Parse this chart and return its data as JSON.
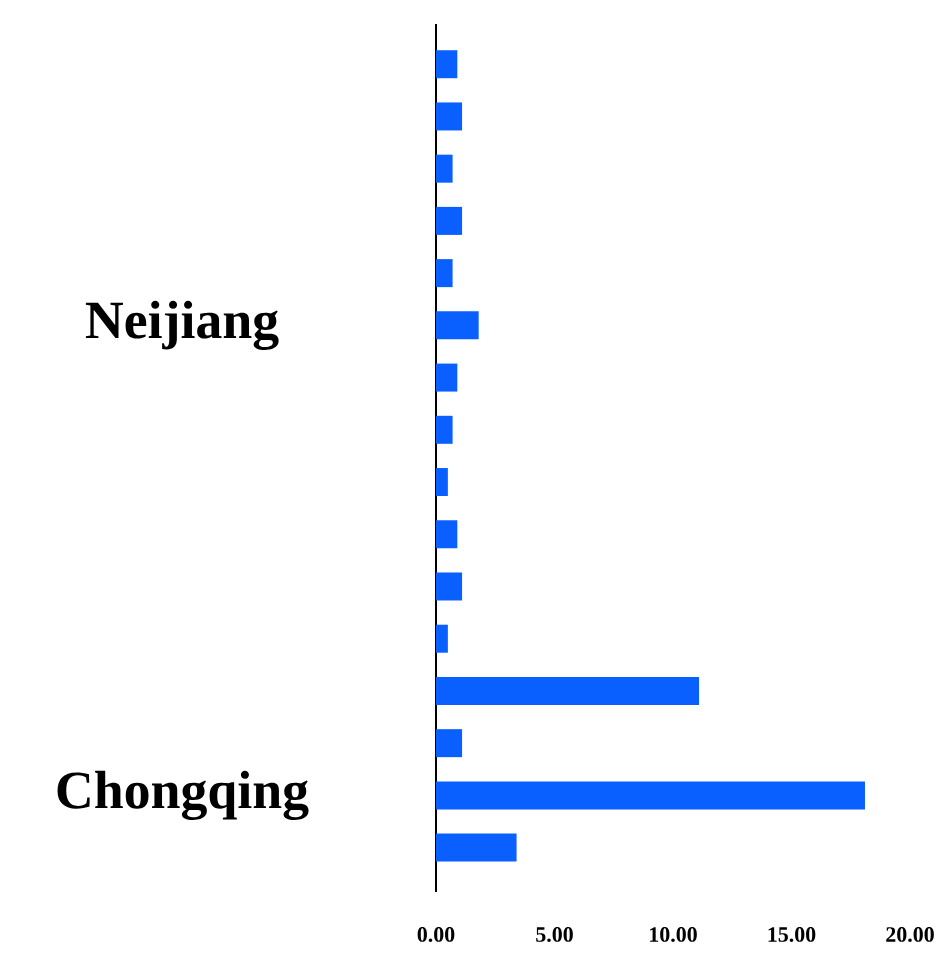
{
  "chart_data": {
    "type": "bar",
    "orientation": "horizontal",
    "categories": [
      null,
      null,
      null,
      null,
      null,
      "Neijiang",
      null,
      null,
      null,
      null,
      null,
      null,
      null,
      null,
      "Chongqing",
      null
    ],
    "values": [
      0.9,
      1.1,
      0.7,
      1.1,
      0.7,
      1.8,
      0.9,
      0.7,
      0.5,
      0.9,
      1.1,
      0.5,
      11.1,
      1.1,
      18.1,
      3.4
    ],
    "color": "#0a5fff",
    "xlim": [
      0,
      20
    ],
    "xticks": [
      {
        "value": 0,
        "label": "0.00"
      },
      {
        "value": 5,
        "label": "5.00"
      },
      {
        "value": 10,
        "label": "10.00"
      },
      {
        "value": 15,
        "label": "15.00"
      },
      {
        "value": 20,
        "label": "20.00"
      }
    ]
  }
}
